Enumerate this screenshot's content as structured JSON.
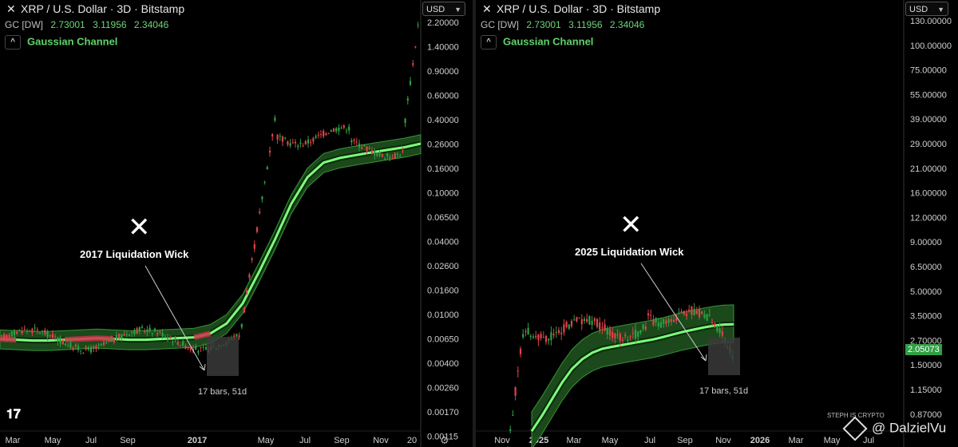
{
  "left": {
    "title": "XRP / U.S. Dollar · 3D · Bitstamp",
    "indicator": {
      "name": "GC [DW]",
      "values": [
        "2.73001",
        "3.11956",
        "2.34046"
      ]
    },
    "channel_label": "Gaussian Channel",
    "currency": "USD",
    "annotation": "2017 Liquidation Wick",
    "bars_note": "17 bars, 51d"
  },
  "right": {
    "title": "XRP / U.S. Dollar · 3D · Bitstamp",
    "indicator": {
      "name": "GC [DW]",
      "values": [
        "2.73001",
        "3.11956",
        "2.34046"
      ]
    },
    "channel_label": "Gaussian Channel",
    "currency": "USD",
    "annotation": "2025 Liquidation Wick",
    "bars_note": "17 bars, 51d",
    "last_price": "2.05073"
  },
  "watermark": "@ DalzielVu",
  "small_mark": "STEPH IS CRYPTO",
  "colors": {
    "up": "#2ea043",
    "down": "#e0434b",
    "channel_fill": "#1d4d1d",
    "channel_mid": "#7dff7d",
    "text": "#d8d8d8"
  },
  "chart_data": [
    {
      "type": "line",
      "title": "XRP / U.S. Dollar · 3D · Bitstamp",
      "y_scale": "log",
      "yticks": [
        "2.20000",
        "1.40000",
        "0.90000",
        "0.60000",
        "0.40000",
        "0.26000",
        "0.16000",
        "0.10000",
        "0.06500",
        "0.04000",
        "0.02600",
        "0.01600",
        "0.01000",
        "0.00650",
        "0.00400",
        "0.00260",
        "0.00170",
        "0.00115"
      ],
      "xticks": [
        "Mar",
        "May",
        "Jul",
        "Sep",
        "2017",
        "May",
        "Jul",
        "Sep",
        "Nov",
        "20"
      ],
      "series": [
        {
          "name": "GC [DW]",
          "values": [
            0.0068,
            0.0067,
            0.0066,
            0.0066,
            0.0067,
            0.0068,
            0.0069,
            0.0068,
            0.0067,
            0.0067,
            0.0068,
            0.0069,
            0.007,
            0.0075,
            0.009,
            0.013,
            0.023,
            0.042,
            0.08,
            0.13,
            0.17,
            0.185,
            0.195,
            0.205,
            0.215,
            0.225,
            0.24
          ]
        }
      ]
    },
    {
      "type": "line",
      "title": "XRP / U.S. Dollar · 3D · Bitstamp",
      "y_scale": "log",
      "yticks": [
        "130.00000",
        "100.00000",
        "75.00000",
        "55.00000",
        "39.00000",
        "29.00000",
        "21.00000",
        "16.00000",
        "12.00000",
        "9.00000",
        "6.50000",
        "5.00000",
        "3.50000",
        "2.70000",
        "1.50000",
        "1.15000",
        "0.87000"
      ],
      "xticks": [
        "Nov",
        "2025",
        "Mar",
        "May",
        "Jul",
        "Sep",
        "Nov",
        "2026",
        "Mar",
        "May",
        "Jul"
      ],
      "series": [
        {
          "name": "GC [DW]",
          "values": [
            0.7,
            0.85,
            1.05,
            1.3,
            1.55,
            1.75,
            1.9,
            2.0,
            2.05,
            2.1,
            2.15,
            2.2,
            2.25,
            2.32,
            2.4,
            2.48,
            2.55,
            2.62,
            2.68,
            2.72,
            2.73
          ]
        }
      ]
    }
  ]
}
